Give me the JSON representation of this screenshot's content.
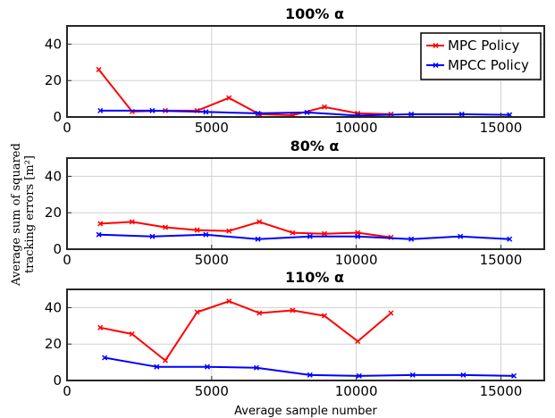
{
  "figure": {
    "ylabel_line1": "Average sum of squared",
    "ylabel_line2": "tracking errors [m²]",
    "xlabel": "Average sample number"
  },
  "legend": {
    "entries": [
      {
        "label": "MPC Policy",
        "color": "#ff0000"
      },
      {
        "label": "MPCC Policy",
        "color": "#0000ff"
      }
    ]
  },
  "colors": {
    "mpc": "#ff0000",
    "mpcc": "#0000ff",
    "grid": "#d0d0d0",
    "axis": "#262626"
  },
  "chart_data": [
    {
      "type": "line",
      "title": "100% α",
      "xlim": [
        0,
        16500
      ],
      "ylim": [
        0,
        50
      ],
      "xticks": [
        0,
        5000,
        10000,
        15000
      ],
      "yticks": [
        0,
        20,
        40
      ],
      "grid": true,
      "legend_position": "top-right",
      "series": [
        {
          "name": "MPC Policy",
          "color": "#ff0000",
          "x": [
            1100,
            2250,
            3400,
            4500,
            5600,
            6650,
            7800,
            8900,
            10050,
            11200
          ],
          "y": [
            26,
            3,
            3.5,
            3.5,
            10.5,
            1.5,
            1,
            5.5,
            2,
            1.5
          ]
        },
        {
          "name": "MPCC Policy",
          "color": "#0000ff",
          "x": [
            1150,
            2950,
            4800,
            6600,
            8300,
            10050,
            11900,
            13650,
            15300
          ],
          "y": [
            3.5,
            3.5,
            2.8,
            2,
            2.5,
            0.8,
            1.5,
            1.5,
            1.2
          ]
        }
      ]
    },
    {
      "type": "line",
      "title": "80% α",
      "xlim": [
        0,
        16500
      ],
      "ylim": [
        0,
        50
      ],
      "xticks": [
        0,
        5000,
        10000,
        15000
      ],
      "yticks": [
        0,
        20,
        40
      ],
      "grid": true,
      "series": [
        {
          "name": "MPC Policy",
          "color": "#ff0000",
          "x": [
            1150,
            2250,
            3400,
            4500,
            5600,
            6650,
            7800,
            8900,
            10050,
            11200
          ],
          "y": [
            14,
            15,
            12,
            10.5,
            10,
            15,
            9,
            8.5,
            9,
            6.5
          ]
        },
        {
          "name": "MPCC Policy",
          "color": "#0000ff",
          "x": [
            1100,
            2950,
            4800,
            6600,
            8400,
            10050,
            11900,
            13600,
            15300
          ],
          "y": [
            8,
            7,
            8,
            5.5,
            7,
            7,
            5.5,
            7,
            5.5
          ]
        }
      ]
    },
    {
      "type": "line",
      "title": "110% α",
      "xlim": [
        0,
        16500
      ],
      "ylim": [
        0,
        50
      ],
      "xticks": [
        0,
        5000,
        10000,
        15000
      ],
      "yticks": [
        0,
        20,
        40
      ],
      "grid": true,
      "series": [
        {
          "name": "MPC Policy",
          "color": "#ff0000",
          "x": [
            1150,
            2250,
            3400,
            4500,
            5600,
            6650,
            7800,
            8900,
            10050,
            11200
          ],
          "y": [
            29,
            25.5,
            11,
            37.5,
            43.5,
            37,
            38.5,
            35.5,
            21.5,
            37
          ]
        },
        {
          "name": "MPCC Policy",
          "color": "#0000ff",
          "x": [
            1300,
            3100,
            4850,
            6550,
            8400,
            10100,
            11950,
            13700,
            15450
          ],
          "y": [
            12.5,
            7.5,
            7.5,
            7,
            3,
            2.5,
            3,
            3,
            2.5
          ]
        }
      ]
    }
  ]
}
